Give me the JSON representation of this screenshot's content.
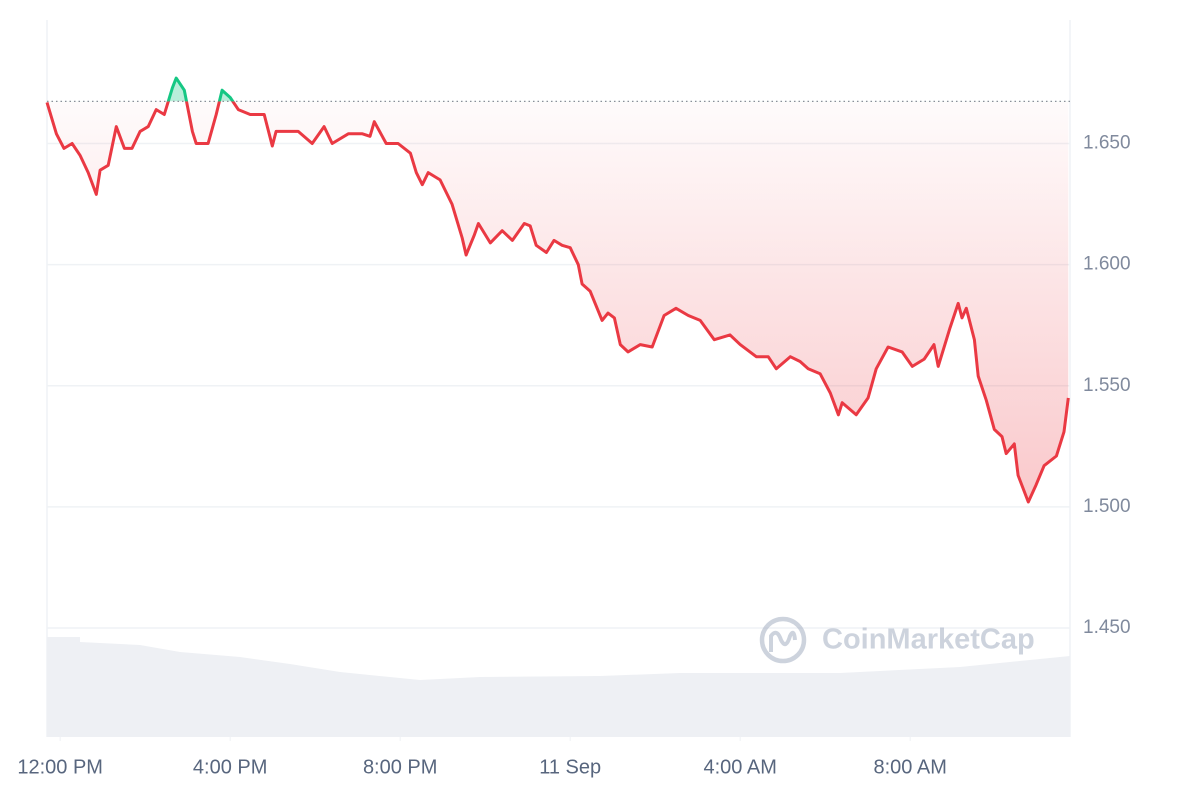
{
  "chart_data": {
    "type": "line",
    "watermark": "CoinMarketCap",
    "x": [
      -0.31,
      -0.09,
      0.09,
      0.28,
      0.47,
      0.66,
      0.85,
      0.94,
      1.13,
      1.32,
      1.51,
      1.69,
      1.88,
      2.07,
      2.26,
      2.45,
      2.64,
      2.73,
      2.92,
      3.11,
      3.2,
      3.48,
      3.67,
      3.81,
      4.0,
      4.19,
      4.47,
      4.8,
      4.99,
      5.08,
      5.6,
      5.93,
      6.21,
      6.4,
      6.78,
      7.11,
      7.29,
      7.39,
      7.67,
      7.95,
      8.24,
      8.38,
      8.52,
      8.66,
      8.94,
      9.22,
      9.46,
      9.55,
      9.74,
      9.84,
      10.12,
      10.4,
      10.64,
      10.92,
      11.06,
      11.2,
      11.44,
      11.62,
      11.81,
      12.0,
      12.19,
      12.28,
      12.47,
      12.75,
      12.89,
      13.04,
      13.18,
      13.36,
      13.65,
      13.93,
      14.21,
      14.49,
      14.78,
      15.06,
      15.39,
      15.76,
      16.0,
      16.38,
      16.66,
      16.85,
      17.18,
      17.41,
      17.6,
      17.88,
      18.12,
      18.31,
      18.4,
      18.73,
      19.01,
      19.2,
      19.48,
      19.81,
      20.05,
      20.33,
      20.56,
      20.66,
      20.94,
      21.13,
      21.22,
      21.32,
      21.51,
      21.6,
      21.79,
      21.98,
      22.16,
      22.26,
      22.45,
      22.54,
      22.78,
      22.96,
      23.15,
      23.44,
      23.62,
      23.72
    ],
    "series": [
      {
        "up_color": "#16c784",
        "color": "#ea3943",
        "values": [
          1.667,
          1.654,
          1.648,
          1.65,
          1.645,
          1.638,
          1.629,
          1.639,
          1.641,
          1.657,
          1.648,
          1.648,
          1.655,
          1.657,
          1.664,
          1.662,
          1.673,
          1.677,
          1.672,
          1.655,
          1.65,
          1.65,
          1.662,
          1.672,
          1.669,
          1.664,
          1.662,
          1.662,
          1.649,
          1.655,
          1.655,
          1.65,
          1.657,
          1.65,
          1.654,
          1.654,
          1.653,
          1.659,
          1.65,
          1.65,
          1.646,
          1.638,
          1.633,
          1.638,
          1.635,
          1.625,
          1.611,
          1.604,
          1.612,
          1.617,
          1.609,
          1.614,
          1.61,
          1.617,
          1.616,
          1.608,
          1.605,
          1.61,
          1.608,
          1.607,
          1.6,
          1.592,
          1.589,
          1.577,
          1.58,
          1.578,
          1.567,
          1.564,
          1.567,
          1.566,
          1.579,
          1.582,
          1.579,
          1.577,
          1.569,
          1.571,
          1.567,
          1.562,
          1.562,
          1.557,
          1.562,
          1.56,
          1.557,
          1.555,
          1.547,
          1.538,
          1.543,
          1.538,
          1.545,
          1.557,
          1.566,
          1.564,
          1.558,
          1.561,
          1.567,
          1.558,
          1.574,
          1.584,
          1.578,
          1.582,
          1.569,
          1.554,
          1.544,
          1.532,
          1.529,
          1.522,
          1.526,
          1.513,
          1.502,
          1.509,
          1.517,
          1.521,
          1.531,
          1.545
        ]
      }
    ],
    "baseline": 1.6674,
    "xlim": [
      -0.31,
      23.76
    ],
    "xticks": [
      {
        "value": 0,
        "label": "12:00 PM"
      },
      {
        "value": 4,
        "label": "4:00 PM"
      },
      {
        "value": 8,
        "label": "8:00 PM"
      },
      {
        "value": 12,
        "label": "11 Sep"
      },
      {
        "value": 16,
        "label": "4:00 AM"
      },
      {
        "value": 20,
        "label": "8:00 AM"
      }
    ],
    "ylim": [
      1.405,
      1.701
    ],
    "yticks": [
      {
        "value": 1.45,
        "label": "1.450"
      },
      {
        "value": 1.5,
        "label": "1.500"
      },
      {
        "value": 1.55,
        "label": "1.550"
      },
      {
        "value": 1.6,
        "label": "1.600"
      },
      {
        "value": 1.65,
        "label": "1.650"
      }
    ],
    "grid": true
  }
}
